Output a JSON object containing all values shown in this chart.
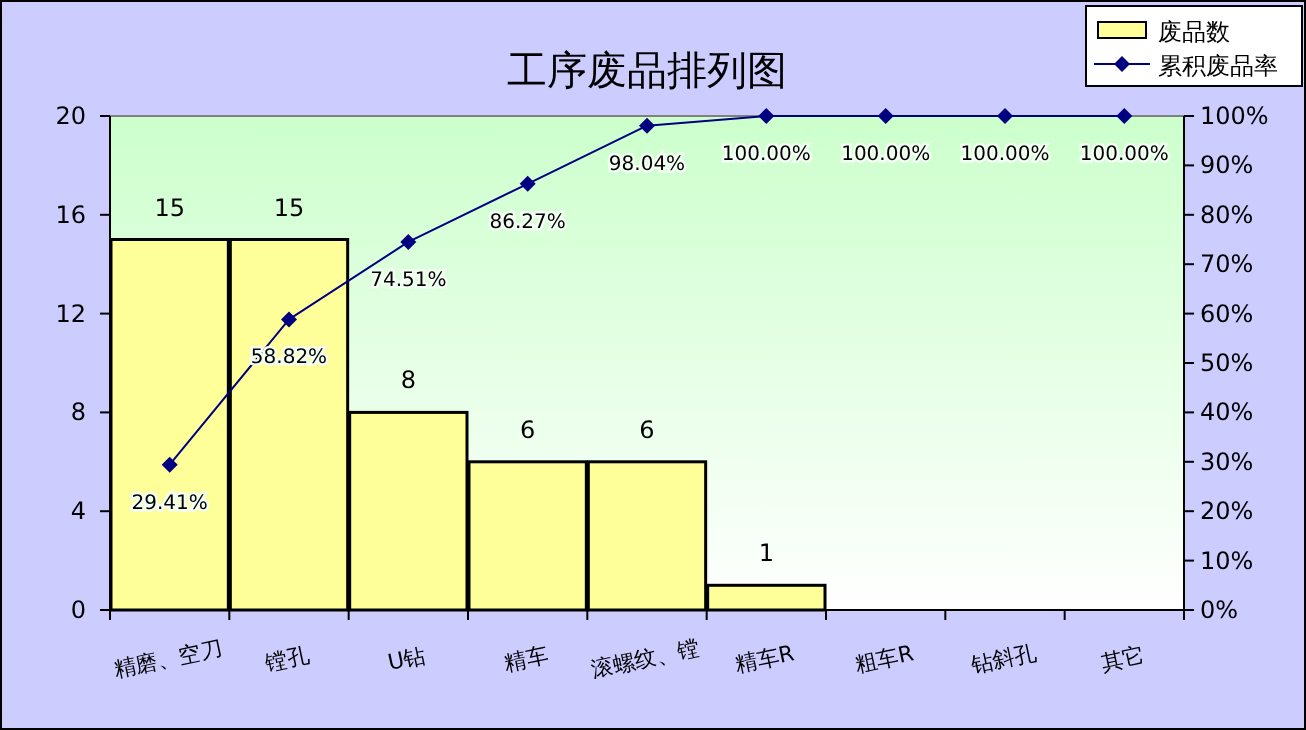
{
  "chart_data": {
    "type": "bar",
    "title": "工序废品排列图",
    "categories": [
      "精磨、空刀",
      "镗孔",
      "U钻",
      "精车",
      "滚螺纹、镗",
      "精车R",
      "粗车R",
      "钻斜孔",
      "其它"
    ],
    "series": [
      {
        "name": "废品数",
        "color": "#ffff99",
        "values": [
          15,
          15,
          8,
          6,
          6,
          1,
          0,
          0,
          0
        ],
        "value_labels": [
          "15",
          "15",
          "8",
          "6",
          "6",
          "1",
          null,
          null,
          null
        ]
      },
      {
        "name": "累积废品率",
        "type": "line",
        "axis": "y2",
        "color": "#000080",
        "marker": "diamond",
        "values": [
          29.41,
          58.82,
          74.51,
          86.27,
          98.04,
          100,
          100,
          100,
          100
        ],
        "value_labels": [
          "29.41%",
          "58.82%",
          "74.51%",
          "86.27%",
          "98.04%",
          "100.00%",
          "100.00%",
          "100.00%",
          "100.00%"
        ]
      }
    ],
    "ylim": [
      0,
      20
    ],
    "yticks": [
      0,
      4,
      8,
      12,
      16,
      20
    ],
    "y2lim": [
      0,
      100
    ],
    "y2ticks": [
      {
        "value": 0,
        "label": "0%"
      },
      {
        "value": 10,
        "label": "10%"
      },
      {
        "value": 20,
        "label": "20%"
      },
      {
        "value": 30,
        "label": "30%"
      },
      {
        "value": 40,
        "label": "40%"
      },
      {
        "value": 50,
        "label": "50%"
      },
      {
        "value": 60,
        "label": "60%"
      },
      {
        "value": 70,
        "label": "70%"
      },
      {
        "value": 80,
        "label": "80%"
      },
      {
        "value": 90,
        "label": "90%"
      },
      {
        "value": 100,
        "label": "100%"
      }
    ],
    "legend": "top right"
  }
}
